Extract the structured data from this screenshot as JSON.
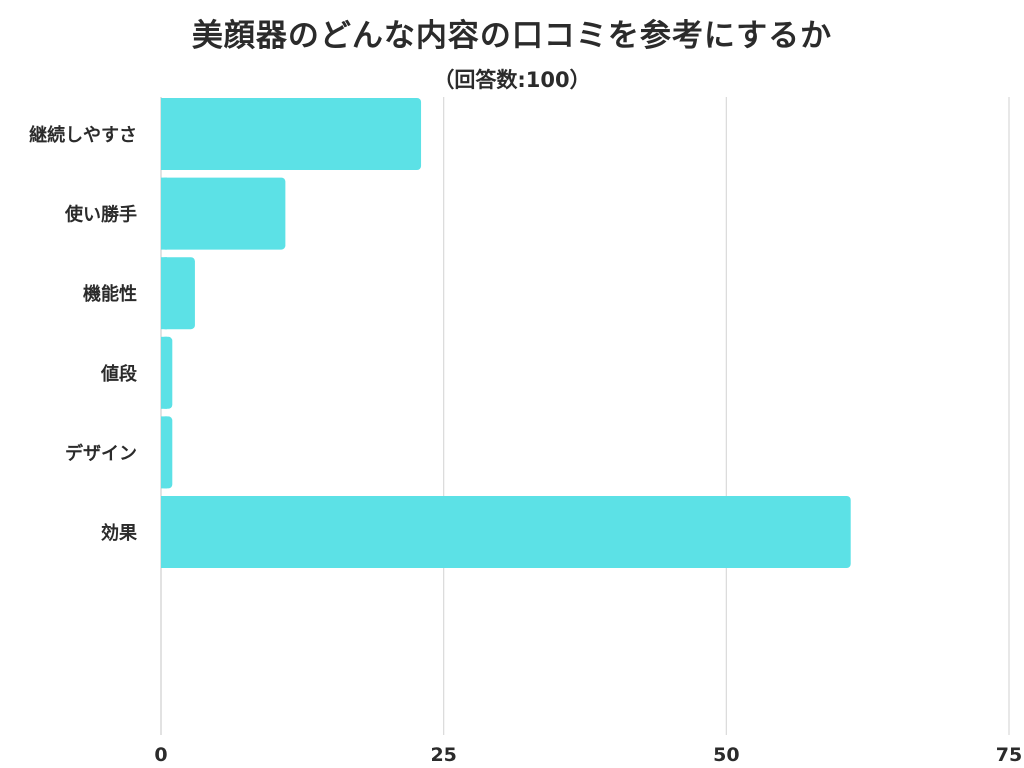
{
  "chart_data": {
    "type": "bar",
    "orientation": "horizontal",
    "title": "美顔器のどんな内容の口コミを参考にするか",
    "subtitle": "（回答数:100）",
    "categories": [
      "継続しやすさ",
      "使い勝手",
      "機能性",
      "値段",
      "デザイン",
      "効果"
    ],
    "values": [
      23,
      11,
      3,
      1,
      1,
      61
    ],
    "xlim": [
      0,
      75
    ],
    "xticks": [
      "0",
      "25",
      "50",
      "75"
    ],
    "grid": true,
    "bar_color": "#5ce1e6",
    "grid_color": "#d9d9d9"
  }
}
